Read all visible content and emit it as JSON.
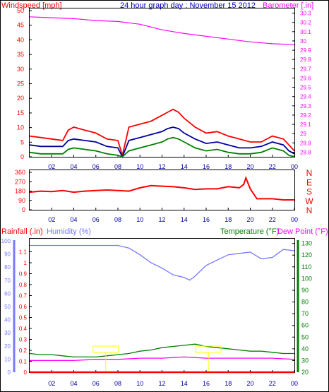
{
  "colors": {
    "frame": "#000000",
    "windspeed": "#ff0000",
    "avg_wind": "#0000a0",
    "gust_green": "#008000",
    "barometer": "#ff00ff",
    "title": "#0000c0",
    "direction": "#ff0000",
    "rainfall": "#ff0000",
    "humidity": "#7878ff",
    "temperature": "#008000",
    "dewpoint": "#ff00ff",
    "annotation": "#ffff00",
    "x_ticks": "#0000a0"
  },
  "header": {
    "left": "Windspeed [mph]",
    "center": "24 hour graph day : November 15 2012",
    "right": "Barometer [.in]"
  },
  "bottom_header": {
    "rainfall": "Rainfall (.in)",
    "humidity": "Humidity (%)",
    "temperature": "Temperature (°F)",
    "dewpoint": "Dew Point (°F)"
  },
  "chart_data": [
    {
      "type": "line",
      "title": "24 hour graph day : November 15 2012",
      "x_ticks": [
        "02",
        "04",
        "06",
        "08",
        "10",
        "12",
        "14",
        "16",
        "18",
        "20",
        "22",
        "00"
      ],
      "x_range": [
        0,
        24
      ],
      "ylabel_left": "Windspeed [mph]",
      "ylim_left": [
        0,
        50
      ],
      "yticks_left": [
        0,
        5,
        10,
        15,
        20,
        25,
        30,
        35,
        40,
        45,
        50
      ],
      "ylabel_right": "Barometer [.in]",
      "ylim_right": [
        28.75,
        30.35
      ],
      "yticks_right": [
        28.8,
        28.9,
        29,
        29.1,
        29.2,
        29.3,
        29.4,
        29.5,
        29.6,
        29.7,
        29.8,
        29.9,
        30,
        30.1,
        30.2,
        30.3
      ],
      "series": [
        {
          "name": "Windspeed [mph]",
          "axis": "left",
          "color": "#ff0000",
          "x": [
            0,
            1,
            2,
            3,
            3.5,
            4,
            5,
            6,
            7,
            8,
            8.4,
            9,
            10,
            11,
            12,
            12.5,
            13,
            13.5,
            14,
            15,
            16,
            17,
            18,
            19,
            20,
            21,
            22,
            23,
            23.5,
            24
          ],
          "y": [
            7,
            6.5,
            6,
            5.5,
            9,
            10,
            9,
            8,
            6,
            5.5,
            0.5,
            10,
            11,
            12,
            14,
            15,
            16,
            15,
            13,
            10,
            8,
            8.5,
            7,
            6,
            5,
            5,
            7,
            6,
            4,
            2
          ]
        },
        {
          "axis": "left",
          "color": "#0000a0",
          "x": [
            0,
            1,
            2,
            3,
            3.5,
            4,
            5,
            6,
            7,
            8,
            8.4,
            9,
            10,
            11,
            12,
            12.5,
            13,
            13.5,
            14,
            15,
            16,
            17,
            18,
            19,
            20,
            21,
            22,
            23,
            23.5,
            24
          ],
          "y": [
            4,
            3.5,
            3.5,
            3.5,
            5.5,
            6,
            5.5,
            5,
            3.5,
            3,
            0,
            5.5,
            6.5,
            7.5,
            8.5,
            9.5,
            10,
            9.5,
            8,
            6,
            4.5,
            5,
            4,
            3,
            3,
            3.5,
            5,
            4,
            2,
            1
          ]
        },
        {
          "axis": "left",
          "color": "#008000",
          "x": [
            0,
            1,
            2,
            3,
            3.5,
            4,
            5,
            6,
            7,
            8,
            8.4,
            9,
            10,
            11,
            12,
            12.5,
            13,
            13.5,
            14,
            15,
            16,
            17,
            18,
            19,
            20,
            21,
            22,
            23,
            23.5,
            24
          ],
          "y": [
            1.5,
            1,
            1,
            1,
            2.5,
            3,
            2.5,
            2,
            1,
            0.5,
            0,
            2,
            3,
            4,
            5,
            6,
            6.5,
            6,
            5,
            3,
            2,
            2.5,
            1.5,
            1,
            1,
            1.5,
            3,
            2,
            0.5,
            0
          ]
        },
        {
          "name": "Barometer [.in]",
          "axis": "right",
          "color": "#ff00ff",
          "x": [
            0,
            2,
            4,
            6,
            8,
            10,
            12,
            14,
            16,
            18,
            20,
            22,
            24
          ],
          "y": [
            30.26,
            30.25,
            30.24,
            30.22,
            30.21,
            30.18,
            30.12,
            30.08,
            30.05,
            30.02,
            29.99,
            29.97,
            29.96
          ]
        }
      ]
    },
    {
      "type": "line",
      "x_ticks": [
        "02",
        "04",
        "06",
        "08",
        "10",
        "12",
        "14",
        "16",
        "18",
        "20",
        "22",
        "00"
      ],
      "x_range": [
        0,
        24
      ],
      "ylim": [
        0,
        360
      ],
      "yticks": [
        0,
        90,
        180,
        270,
        360
      ],
      "compass_labels": [
        "N",
        "W",
        "S",
        "E",
        "N"
      ],
      "series": [
        {
          "color": "#ff0000",
          "x": [
            0,
            1,
            2,
            3,
            4,
            5,
            6,
            7,
            8,
            9,
            10,
            11,
            12,
            13,
            14,
            15,
            16,
            17,
            18,
            19,
            19.4,
            19.6,
            20,
            20.6,
            21,
            22,
            23,
            24
          ],
          "y": [
            160,
            170,
            165,
            175,
            160,
            170,
            175,
            180,
            175,
            170,
            200,
            220,
            215,
            210,
            200,
            185,
            190,
            190,
            210,
            200,
            230,
            290,
            190,
            100,
            100,
            100,
            90,
            90
          ]
        }
      ]
    },
    {
      "type": "line",
      "x_ticks": [
        "02",
        "04",
        "06",
        "08",
        "10",
        "12",
        "14",
        "16",
        "18",
        "20",
        "22",
        "00"
      ],
      "x_range": [
        0,
        24
      ],
      "ylabel_rain": "Rainfall (.in)",
      "ylim_rain": [
        0,
        1.2
      ],
      "yticks_rain": [
        0,
        0.1,
        0.2,
        0.3,
        0.4,
        0.5,
        0.6,
        0.7,
        0.8,
        0.9,
        1,
        1.1
      ],
      "ylabel_humidity": "Humidity (%)",
      "ylim_humidity": [
        0,
        100
      ],
      "yticks_humidity": [
        0,
        10,
        20,
        30,
        40,
        50,
        60,
        70,
        80,
        90,
        100
      ],
      "ylabel_right": "Temperature (°F)",
      "ylim_right": [
        20,
        134
      ],
      "yticks_right": [
        20,
        30,
        40,
        50,
        60,
        70,
        80,
        90,
        100,
        110,
        120,
        130
      ],
      "series": [
        {
          "name": "Humidity (%)",
          "axis": "humidity",
          "color": "#7878ff",
          "x": [
            0,
            2,
            4,
            6,
            8,
            9,
            10,
            11,
            12,
            13,
            14,
            14.5,
            15,
            16,
            17,
            18,
            19,
            20,
            21,
            22,
            23,
            24
          ],
          "y": [
            95,
            95,
            95,
            95,
            95,
            93,
            88,
            82,
            78,
            73,
            71,
            69,
            72,
            80,
            84,
            88,
            89,
            90,
            85,
            86,
            92,
            91
          ]
        },
        {
          "name": "Temperature (°F)",
          "axis": "right",
          "color": "#008000",
          "x": [
            0,
            1,
            2,
            3,
            4,
            5,
            6,
            7,
            8,
            9,
            10,
            11,
            12,
            13,
            14,
            15,
            16,
            17,
            18,
            19,
            20,
            21,
            22,
            23,
            24
          ],
          "y": [
            36,
            35,
            35,
            34,
            33,
            33,
            33,
            34,
            35,
            36,
            38,
            39,
            41,
            42,
            43,
            44,
            42,
            41,
            40,
            39,
            38,
            38,
            37,
            36,
            36
          ]
        },
        {
          "name": "Dew Point (°F)",
          "axis": "right",
          "color": "#ff00ff",
          "x": [
            0,
            2,
            4,
            6,
            8,
            10,
            12,
            14,
            16,
            18,
            20,
            22,
            24
          ],
          "y": [
            30,
            30,
            30,
            31,
            31,
            32,
            32,
            33,
            32,
            32,
            32,
            32,
            31
          ]
        },
        {
          "name": "Rainfall (.in)",
          "axis": "rain",
          "color": "#ff0000",
          "x": [
            0,
            24
          ],
          "y": [
            0,
            0
          ]
        }
      ]
    }
  ]
}
